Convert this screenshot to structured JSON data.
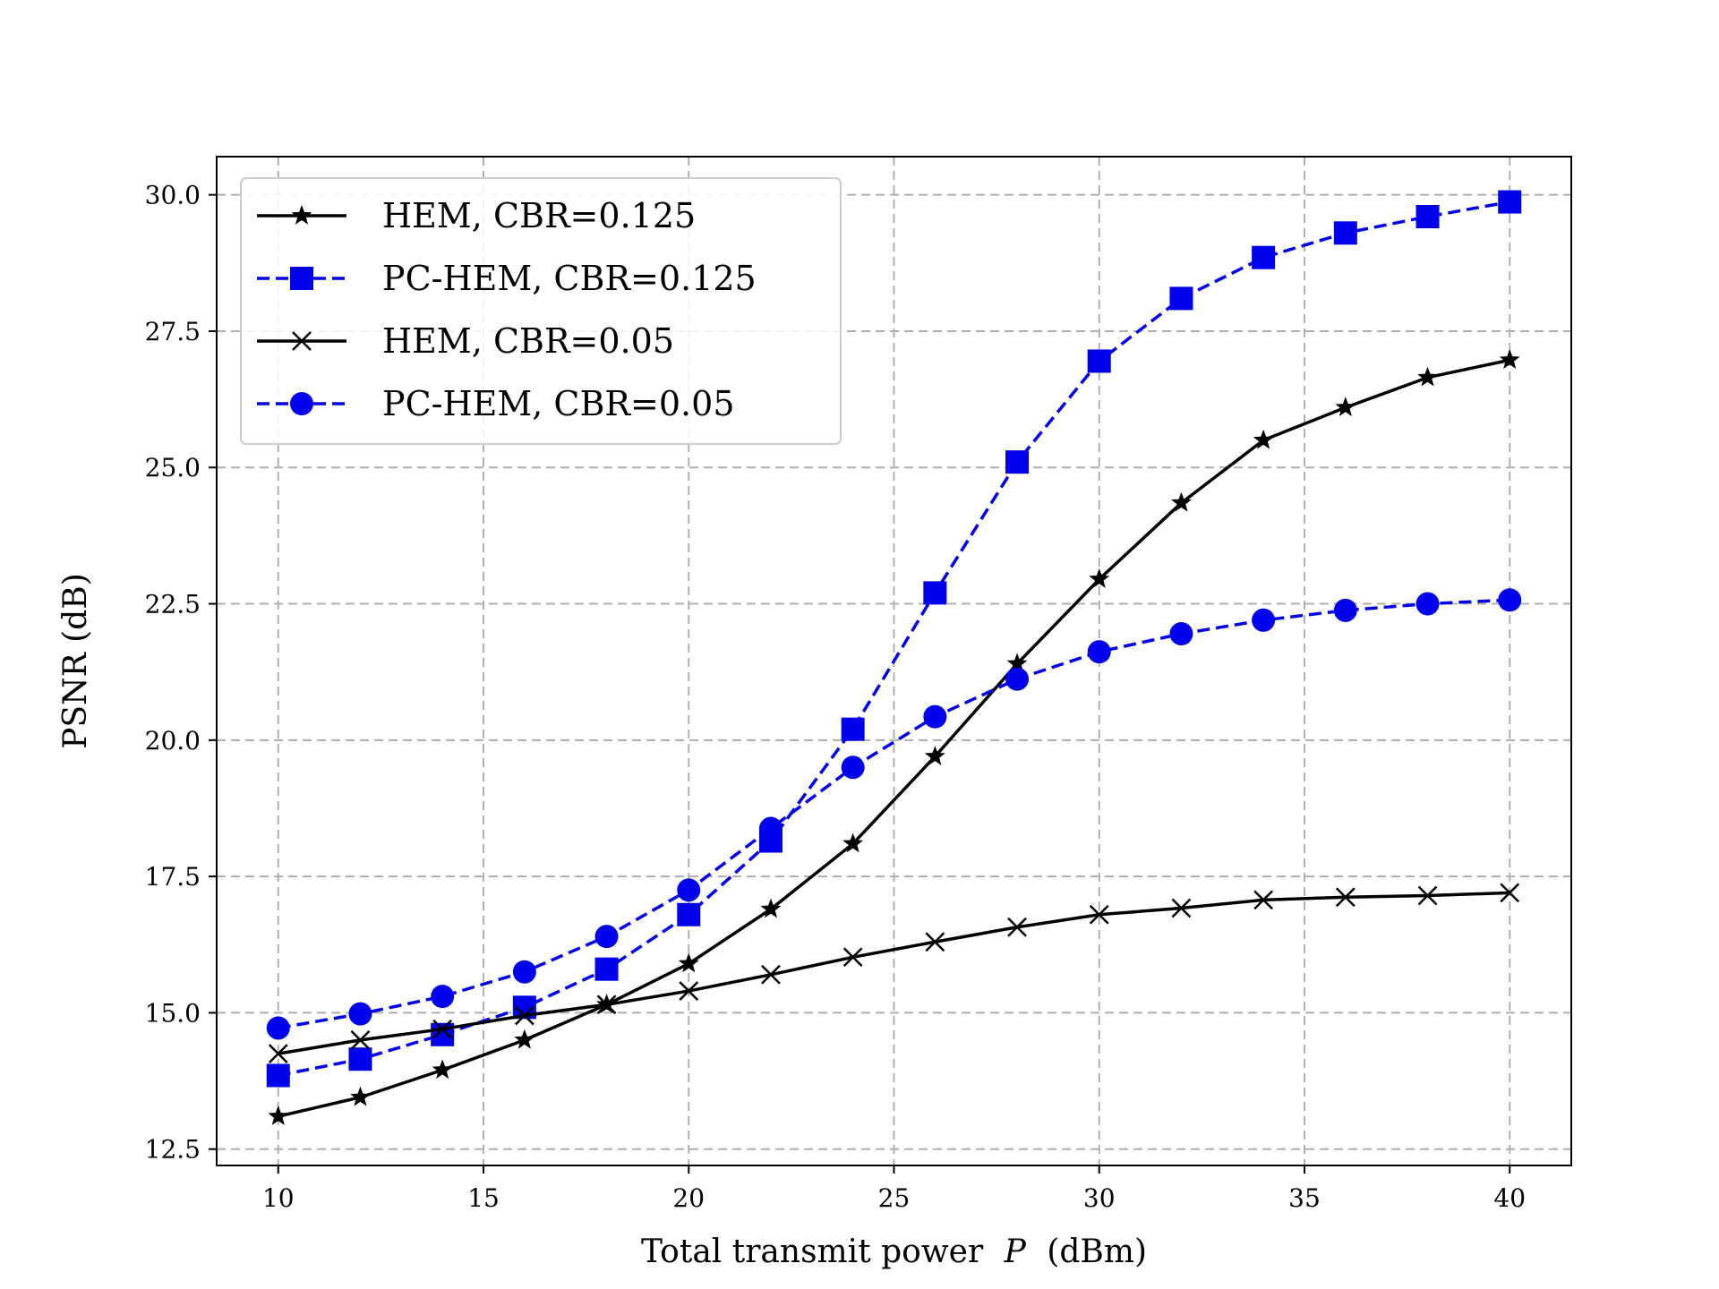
{
  "chart_data": {
    "type": "line",
    "title": "",
    "xlabel": "Total transmit power",
    "xlabel_symbol": "P",
    "xlabel_unit": "(dBm)",
    "ylabel": "PSNR (dB)",
    "xlim": [
      8.5,
      41.5
    ],
    "ylim": [
      12.2,
      30.7
    ],
    "xticks": [
      10,
      15,
      20,
      25,
      30,
      35,
      40
    ],
    "xtick_labels": [
      "10",
      "15",
      "20",
      "25",
      "30",
      "35",
      "40"
    ],
    "yticks": [
      12.5,
      15.0,
      17.5,
      20.0,
      22.5,
      25.0,
      27.5,
      30.0
    ],
    "ytick_labels": [
      "12.5",
      "15.0",
      "17.5",
      "20.0",
      "22.5",
      "25.0",
      "27.5",
      "30.0"
    ],
    "grid": true,
    "legend_position": "top-left",
    "x": [
      10,
      12,
      14,
      16,
      18,
      20,
      22,
      24,
      26,
      28,
      30,
      32,
      34,
      36,
      38,
      40
    ],
    "series": [
      {
        "name": "HEM, CBR=0.125",
        "color": "#000000",
        "linestyle": "solid",
        "marker": "star",
        "values": [
          13.1,
          13.45,
          13.95,
          14.5,
          15.15,
          15.9,
          16.9,
          18.1,
          19.7,
          21.4,
          22.95,
          24.35,
          25.5,
          26.1,
          26.65,
          26.97
        ]
      },
      {
        "name": "PC-HEM, CBR=0.125",
        "color": "#0000ee",
        "linestyle": "dashed",
        "marker": "square",
        "values": [
          13.85,
          14.15,
          14.6,
          15.1,
          15.8,
          16.8,
          18.15,
          20.2,
          22.7,
          25.1,
          26.95,
          28.1,
          28.85,
          29.3,
          29.6,
          29.87
        ]
      },
      {
        "name": "HEM, CBR=0.05",
        "color": "#000000",
        "linestyle": "solid",
        "marker": "x",
        "values": [
          14.25,
          14.5,
          14.7,
          14.95,
          15.15,
          15.4,
          15.7,
          16.02,
          16.3,
          16.57,
          16.8,
          16.92,
          17.07,
          17.12,
          17.15,
          17.2
        ]
      },
      {
        "name": "PC-HEM, CBR=0.05",
        "color": "#0000ee",
        "linestyle": "dashed",
        "marker": "circle",
        "values": [
          14.72,
          14.98,
          15.3,
          15.75,
          16.4,
          17.25,
          18.38,
          19.5,
          20.43,
          21.12,
          21.62,
          21.95,
          22.2,
          22.38,
          22.5,
          22.57
        ]
      }
    ]
  }
}
